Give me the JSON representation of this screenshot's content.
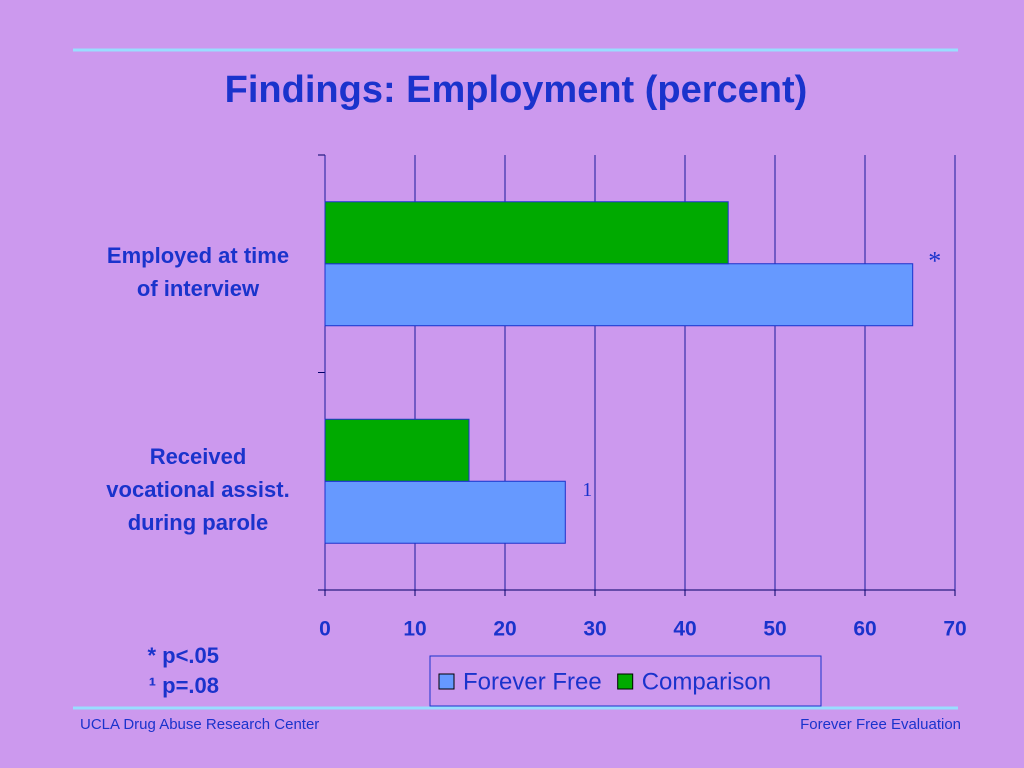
{
  "chart_data": {
    "type": "bar",
    "orientation": "horizontal",
    "title": "Findings: Employment (percent)",
    "categories": [
      "Employed at time\nof interview",
      "Received\nvocational assist.\nduring parole"
    ],
    "series": [
      {
        "name": "Forever Free",
        "color": "#6699ff",
        "values": [
          65.3,
          26.7
        ]
      },
      {
        "name": "Comparison",
        "color": "#00aa00",
        "values": [
          44.8,
          16
        ]
      }
    ],
    "annotations": [
      "*",
      "1"
    ],
    "xlim": [
      0,
      70
    ],
    "xticks": [
      0,
      10,
      20,
      30,
      40,
      50,
      60,
      70
    ],
    "grid": true,
    "footnotes": [
      "* p<.05",
      "¹ p=.08"
    ]
  },
  "footer": {
    "left": "UCLA Drug Abuse Research Center",
    "right": "Forever Free Evaluation"
  }
}
